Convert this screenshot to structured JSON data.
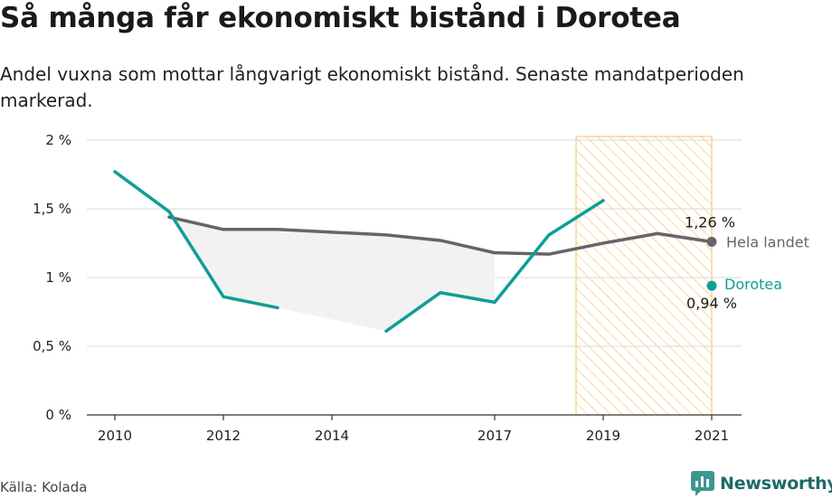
{
  "header": {
    "title": "Så många får ekonomiskt bistånd i Dorotea",
    "subtitle": "Andel vuxna som mottar långvarigt ekonomiskt bistånd. Senaste mandatperioden markerad."
  },
  "footer": {
    "source": "Källa: Kolada",
    "brand": "Newsworthy",
    "brand_icon": "newsworthy-logo-icon"
  },
  "colors": {
    "dorotea": "#0f9e94",
    "hela_landet": "#66646a",
    "highlight": "#f5c15c",
    "grid": "#d9d9d9",
    "fill": "#f2f2f2"
  },
  "chart_data": {
    "type": "line",
    "x": [
      2010,
      2011,
      2012,
      2013,
      2014,
      2015,
      2016,
      2017,
      2018,
      2019,
      2020,
      2021
    ],
    "x_ticks": [
      2010,
      2012,
      2014,
      2017,
      2019,
      2021
    ],
    "y_ticks": [
      {
        "value": 0,
        "label": "0 %"
      },
      {
        "value": 0.5,
        "label": "0,5 %"
      },
      {
        "value": 1,
        "label": "1 %"
      },
      {
        "value": 1.5,
        "label": "1,5 %"
      },
      {
        "value": 2,
        "label": "2 %"
      }
    ],
    "ylim": [
      0,
      2
    ],
    "xlim": [
      2010,
      2021
    ],
    "grid": true,
    "highlight_period": [
      2018.5,
      2021
    ],
    "series": [
      {
        "name": "Hela landet",
        "key": "hela_landet",
        "values": [
          null,
          1.44,
          1.35,
          1.35,
          1.33,
          1.31,
          1.27,
          1.18,
          1.17,
          1.25,
          1.32,
          1.26
        ],
        "end_value_label": "1,26 %"
      },
      {
        "name": "Dorotea",
        "key": "dorotea",
        "values": [
          1.77,
          1.48,
          0.86,
          0.78,
          null,
          0.61,
          0.89,
          0.82,
          1.31,
          1.56,
          null,
          0.94
        ],
        "end_value_label": "0,94 %"
      }
    ]
  }
}
